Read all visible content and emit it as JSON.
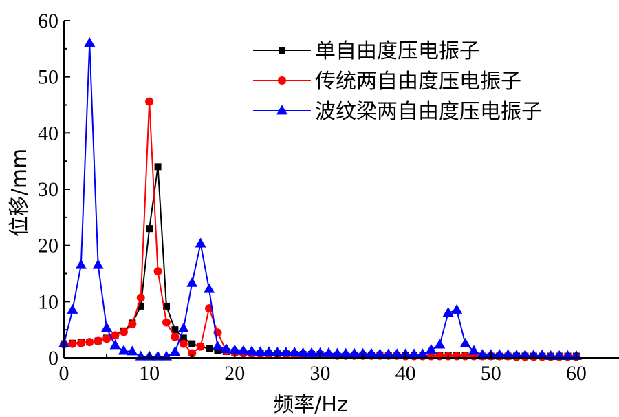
{
  "chart_data": {
    "type": "line",
    "xlabel": "频率/Hz",
    "ylabel": "位移/mm",
    "xlim": [
      0,
      65
    ],
    "ylim": [
      0,
      60
    ],
    "xticks": [
      0,
      10,
      20,
      30,
      40,
      50,
      60
    ],
    "yticks": [
      0,
      10,
      20,
      30,
      40,
      50,
      60
    ],
    "grid": false,
    "legend_position": "top-right",
    "series": [
      {
        "name": "单自由度压电振子",
        "color": "#000000",
        "marker": "square",
        "x": [
          0,
          1,
          2,
          3,
          4,
          5,
          6,
          7,
          8,
          9,
          10,
          11,
          12,
          13,
          14,
          15,
          16,
          17,
          18,
          19,
          20,
          21,
          22,
          23,
          24,
          25,
          26,
          27,
          28,
          29,
          30,
          31,
          32,
          33,
          34,
          35,
          36,
          37,
          38,
          39,
          40,
          41,
          42,
          43,
          44,
          45,
          46,
          47,
          48,
          49,
          50,
          51,
          52,
          53,
          54,
          55,
          56,
          57,
          58,
          59,
          60
        ],
        "y": [
          2.5,
          2.6,
          2.7,
          2.8,
          3.0,
          3.5,
          4.0,
          4.8,
          6.2,
          9.2,
          23.0,
          34.0,
          9.2,
          5.0,
          3.5,
          2.5,
          2.0,
          1.6,
          1.3,
          1.1,
          1.0,
          0.9,
          0.8,
          0.8,
          0.7,
          0.7,
          0.7,
          0.6,
          0.6,
          0.6,
          0.6,
          0.5,
          0.5,
          0.5,
          0.5,
          0.5,
          0.5,
          0.5,
          0.4,
          0.4,
          0.4,
          0.4,
          0.4,
          0.4,
          0.4,
          0.4,
          0.4,
          0.4,
          0.4,
          0.3,
          0.3,
          0.3,
          0.3,
          0.3,
          0.3,
          0.3,
          0.3,
          0.3,
          0.3,
          0.3,
          0.3
        ]
      },
      {
        "name": "传统两自由度压电振子",
        "color": "#ff0000",
        "marker": "circle",
        "x": [
          0,
          1,
          2,
          3,
          4,
          5,
          6,
          7,
          8,
          9,
          10,
          11,
          12,
          13,
          14,
          15,
          16,
          17,
          18,
          19,
          20,
          21,
          22,
          23,
          24,
          25,
          26,
          27,
          28,
          29,
          30,
          31,
          32,
          33,
          34,
          35,
          36,
          37,
          38,
          39,
          40,
          41,
          42,
          43,
          44,
          45,
          46,
          47,
          48,
          49,
          50,
          51,
          52,
          53,
          54,
          55,
          56,
          57,
          58,
          59,
          60
        ],
        "y": [
          2.4,
          2.5,
          2.6,
          2.8,
          3.0,
          3.4,
          4.0,
          4.6,
          6.0,
          10.7,
          45.6,
          15.4,
          6.3,
          3.7,
          2.5,
          0.8,
          2.0,
          8.8,
          4.5,
          1.2,
          0.9,
          0.8,
          0.7,
          0.7,
          0.6,
          0.6,
          0.6,
          0.5,
          0.5,
          0.5,
          0.5,
          0.5,
          0.4,
          0.4,
          0.4,
          0.4,
          0.4,
          0.4,
          0.4,
          0.4,
          0.3,
          0.3,
          0.3,
          0.3,
          0.3,
          0.3,
          0.3,
          0.3,
          0.3,
          0.3,
          0.3,
          0.3,
          0.3,
          0.2,
          0.2,
          0.2,
          0.2,
          0.2,
          0.2,
          0.2,
          0.2
        ]
      },
      {
        "name": "波纹梁两自由度压电振子",
        "color": "#0000ff",
        "marker": "triangle",
        "x": [
          0,
          1,
          2,
          3,
          4,
          5,
          6,
          7,
          8,
          9,
          10,
          11,
          12,
          13,
          14,
          15,
          16,
          17,
          18,
          19,
          20,
          21,
          22,
          23,
          24,
          25,
          26,
          27,
          28,
          29,
          30,
          31,
          32,
          33,
          34,
          35,
          36,
          37,
          38,
          39,
          40,
          41,
          42,
          43,
          44,
          45,
          46,
          47,
          48,
          49,
          50,
          51,
          52,
          53,
          54,
          55,
          56,
          57,
          58,
          59,
          60
        ],
        "y": [
          2.5,
          8.5,
          16.5,
          56.0,
          16.5,
          5.3,
          2.2,
          1.2,
          1.1,
          0.2,
          0.2,
          0.2,
          0.2,
          1.0,
          5.2,
          13.3,
          20.3,
          12.2,
          2.0,
          1.5,
          1.3,
          1.2,
          1.1,
          1.0,
          1.0,
          0.9,
          0.9,
          0.9,
          0.8,
          0.8,
          0.8,
          0.8,
          0.7,
          0.7,
          0.7,
          0.7,
          0.7,
          0.6,
          0.6,
          0.6,
          0.6,
          0.6,
          0.6,
          1.4,
          2.3,
          8.0,
          8.5,
          2.5,
          1.2,
          0.5,
          0.5,
          0.5,
          0.5,
          0.4,
          0.4,
          0.4,
          0.4,
          0.3,
          0.3,
          0.3,
          0.3
        ]
      }
    ]
  }
}
